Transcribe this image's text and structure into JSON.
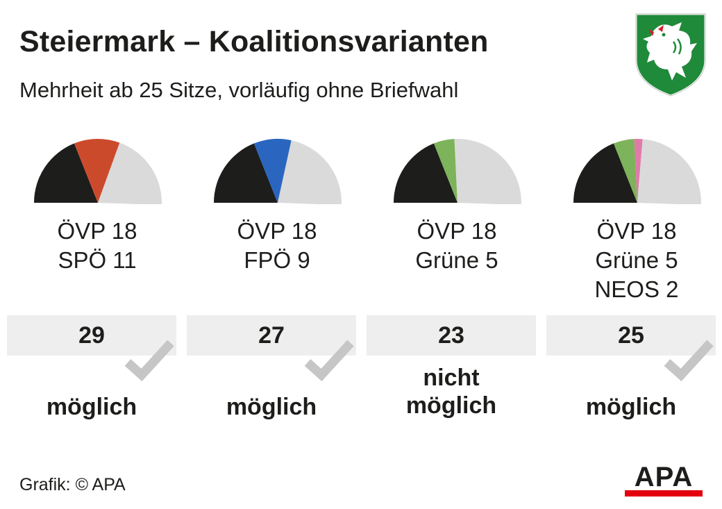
{
  "header": {
    "title": "Steiermark – Koalitionsvarianten",
    "subtitle": "Mehrheit ab 25 Sitze, vorläufig ohne Briefwahl"
  },
  "footer": {
    "credit": "Grafik: © APA",
    "logo_text": "APA"
  },
  "colors": {
    "ÖVP": "#1d1d1b",
    "SPÖ": "#cc4a2c",
    "FPÖ": "#2a66c0",
    "Grüne": "#7db35a",
    "NEOS": "#e07aa8",
    "rest": "#dadada",
    "check": "#c6c6c6",
    "seat_box": "#eeeeee",
    "apa_red": "#e3000f",
    "crest_green": "#1f8a3a"
  },
  "chart_data": {
    "type": "pie",
    "total_seats": 48,
    "majority": 25,
    "coalitions": [
      {
        "parties": [
          {
            "name": "ÖVP",
            "seats": 18,
            "label": "ÖVP 18"
          },
          {
            "name": "SPÖ",
            "seats": 11,
            "label": "SPÖ 11"
          }
        ],
        "total": "29",
        "result_lines": [
          "möglich"
        ],
        "check": true
      },
      {
        "parties": [
          {
            "name": "ÖVP",
            "seats": 18,
            "label": "ÖVP 18"
          },
          {
            "name": "FPÖ",
            "seats": 9,
            "label": "FPÖ 9"
          }
        ],
        "total": "27",
        "result_lines": [
          "möglich"
        ],
        "check": true
      },
      {
        "parties": [
          {
            "name": "ÖVP",
            "seats": 18,
            "label": "ÖVP 18"
          },
          {
            "name": "Grüne",
            "seats": 5,
            "label": "Grüne 5"
          }
        ],
        "total": "23",
        "result_lines": [
          "nicht",
          "möglich"
        ],
        "check": false
      },
      {
        "parties": [
          {
            "name": "ÖVP",
            "seats": 18,
            "label": "ÖVP 18"
          },
          {
            "name": "Grüne",
            "seats": 5,
            "label": "Grüne 5"
          },
          {
            "name": "NEOS",
            "seats": 2,
            "label": "NEOS 2"
          }
        ],
        "total": "25",
        "result_lines": [
          "möglich"
        ],
        "check": true
      }
    ]
  }
}
